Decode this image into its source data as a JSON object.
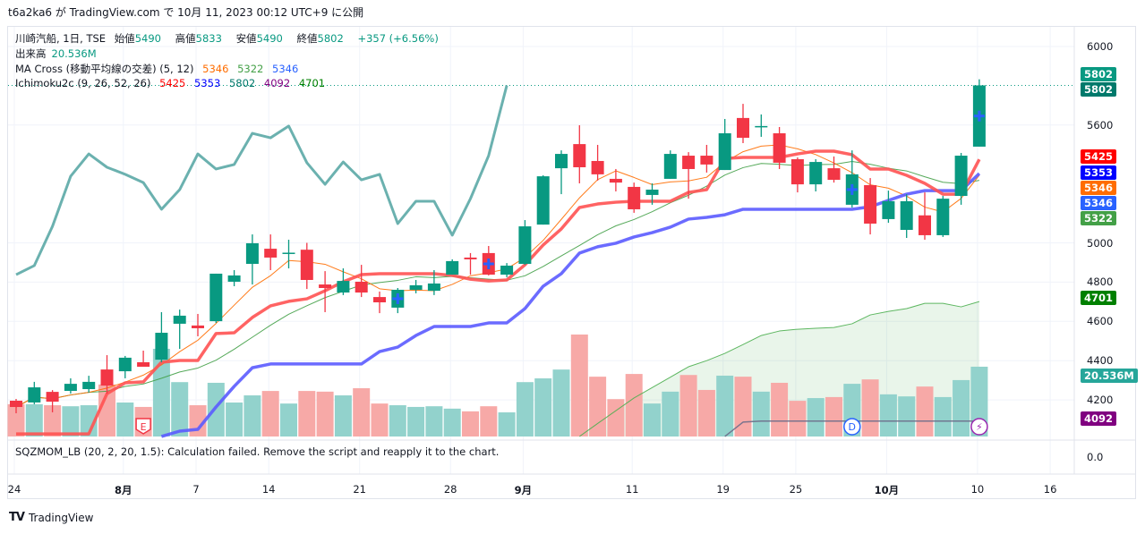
{
  "caption": "t6a2ka6 が TradingView.com で 10月 11, 2023 00:12 UTC+9 に公開",
  "legend": {
    "symbol": "川崎汽船, 1日, TSE",
    "open_label": "始値",
    "open": "5490",
    "high_label": "高値",
    "high": "5833",
    "low_label": "安値",
    "low": "5490",
    "close_label": "終値",
    "close": "5802",
    "change": "+357 (+6.56%)",
    "volume_label": "出来高",
    "volume": "20.536M",
    "ma_label": "MA Cross (移動平均線の交差) (5, 12)",
    "ma_values": [
      "5346",
      "5322",
      "5346"
    ],
    "ichimoku_label": "Ichimoku2c (9, 26, 52, 26)",
    "ichimoku_values": [
      "5425",
      "5353",
      "5802",
      "4092",
      "4701"
    ]
  },
  "price_ticks": [
    "6000",
    "5600",
    "5000",
    "4800",
    "4600",
    "4400",
    "4200"
  ],
  "lower_tick": "0.0",
  "price_labels": [
    {
      "text": "5802",
      "color": "#089981",
      "price": 5860
    },
    {
      "text": "5802",
      "color": "#00796b",
      "price": 5802
    },
    {
      "text": "5425",
      "color": "#ff0000",
      "price": 5440
    },
    {
      "text": "5353",
      "color": "#0000ff",
      "price": 5358
    },
    {
      "text": "5346",
      "color": "#ff6d00",
      "price": 5280
    },
    {
      "text": "5346",
      "color": "#2962ff",
      "price": 5203
    },
    {
      "text": "5322",
      "color": "#43a047",
      "price": 5126
    },
    {
      "text": "4701",
      "color": "#008000",
      "price": 4718
    },
    {
      "text": "20.536M",
      "color": "#26a69a",
      "price": 4380
    },
    {
      "text": "4092",
      "color": "#800080",
      "price": 4103
    }
  ],
  "date_labels": [
    {
      "text": "24",
      "index": 0
    },
    {
      "text": "8月",
      "index": 6
    },
    {
      "text": "7",
      "index": 10
    },
    {
      "text": "14",
      "index": 14
    },
    {
      "text": "21",
      "index": 19
    },
    {
      "text": "28",
      "index": 24
    },
    {
      "text": "9月",
      "index": 28
    },
    {
      "text": "11",
      "index": 34
    },
    {
      "text": "19",
      "index": 39
    },
    {
      "text": "25",
      "index": 43
    },
    {
      "text": "10月",
      "index": 48
    },
    {
      "text": "10",
      "index": 53
    },
    {
      "text": "16",
      "index": 57
    }
  ],
  "error_message": "SQZMOM_LB (20, 2, 20, 1.5): Calculation failed. Remove the script and reapply it to the chart.",
  "footer_logo": "TradingView",
  "markers": [
    {
      "type": "earnings",
      "text": "E",
      "index": 7
    },
    {
      "type": "dividend",
      "text": "D",
      "index": 46
    },
    {
      "type": "split",
      "text": "⚡",
      "index": 53
    }
  ],
  "colors": {
    "up": "#089981",
    "down": "#f23645",
    "vol_up": "#92d2cc",
    "vol_down": "#f7a9a7",
    "ma_fast": "#ff6d00",
    "ma_slow": "#43a047",
    "conversion": "#ff5252",
    "base": "#5b5bff",
    "lagging": "#5ba9a6",
    "span_a": "#6d6d8a",
    "span_b": "#4caf50"
  },
  "chart_data": {
    "type": "candlestick",
    "ylim": [
      4086,
      6000
    ],
    "candles": [
      [
        4196,
        4205,
        4132,
        4164
      ],
      [
        4187,
        4292,
        4178,
        4264
      ],
      [
        4241,
        4250,
        4137,
        4191
      ],
      [
        4246,
        4310,
        4232,
        4282
      ],
      [
        4255,
        4323,
        4237,
        4292
      ],
      [
        4355,
        4428,
        4232,
        4273
      ],
      [
        4346,
        4424,
        4310,
        4415
      ],
      [
        4392,
        4451,
        4369,
        4369
      ],
      [
        4405,
        4647,
        4392,
        4542
      ],
      [
        4588,
        4660,
        4460,
        4629
      ],
      [
        4579,
        4638,
        4524,
        4565
      ],
      [
        4601,
        4843,
        4592,
        4843
      ],
      [
        4802,
        4861,
        4779,
        4834
      ],
      [
        4893,
        5043,
        4788,
        4998
      ],
      [
        4970,
        5043,
        4861,
        4925
      ],
      [
        4950,
        5016,
        4870,
        4950
      ],
      [
        4965,
        5000,
        4765,
        4811
      ],
      [
        4788,
        4856,
        4647,
        4770
      ],
      [
        4747,
        4870,
        4734,
        4806
      ],
      [
        4802,
        4888,
        4724,
        4747
      ],
      [
        4724,
        4752,
        4642,
        4697
      ],
      [
        4670,
        4770,
        4642,
        4761
      ],
      [
        4761,
        4811,
        4743,
        4784
      ],
      [
        4756,
        4861,
        4734,
        4793
      ],
      [
        4838,
        4916,
        4838,
        4907
      ],
      [
        4925,
        4948,
        4838,
        4916
      ],
      [
        4948,
        4984,
        4834,
        4838
      ],
      [
        4838,
        4897,
        4825,
        4884
      ],
      [
        4893,
        5116,
        4888,
        5084
      ],
      [
        5093,
        5344,
        5093,
        5339
      ],
      [
        5380,
        5471,
        5248,
        5453
      ],
      [
        5503,
        5599,
        5303,
        5385
      ],
      [
        5417,
        5499,
        5317,
        5349
      ],
      [
        5326,
        5376,
        5262,
        5307
      ],
      [
        5285,
        5307,
        5153,
        5171
      ],
      [
        5244,
        5303,
        5194,
        5271
      ],
      [
        5326,
        5471,
        5326,
        5453
      ],
      [
        5444,
        5462,
        5225,
        5376
      ],
      [
        5444,
        5499,
        5358,
        5399
      ],
      [
        5371,
        5631,
        5371,
        5558
      ],
      [
        5636,
        5708,
        5508,
        5535
      ],
      [
        5595,
        5654,
        5540,
        5595
      ],
      [
        5558,
        5590,
        5376,
        5408
      ],
      [
        5426,
        5435,
        5257,
        5298
      ],
      [
        5298,
        5426,
        5262,
        5412
      ],
      [
        5380,
        5440,
        5307,
        5321
      ],
      [
        5194,
        5471,
        5180,
        5349
      ],
      [
        5294,
        5330,
        5043,
        5098
      ],
      [
        5121,
        5266,
        5102,
        5212
      ],
      [
        5066,
        5248,
        5025,
        5212
      ],
      [
        5140,
        5257,
        5016,
        5039
      ],
      [
        5039,
        5239,
        5030,
        5225
      ],
      [
        5239,
        5458,
        5194,
        5444
      ],
      [
        5490,
        5833,
        5490,
        5802
      ]
    ],
    "volume_millions": [
      9.5,
      9.5,
      9.2,
      8.9,
      9.2,
      15.3,
      10.0,
      8.7,
      25.8,
      16.0,
      9.2,
      15.8,
      10.0,
      12.1,
      13.4,
      9.7,
      13.4,
      13.2,
      12.1,
      14.2,
      9.7,
      9.2,
      8.7,
      8.9,
      8.2,
      7.4,
      8.9,
      7.1,
      16.0,
      17.1,
      19.7,
      30.0,
      17.6,
      11.0,
      18.4,
      9.7,
      13.2,
      18.1,
      13.7,
      17.9,
      17.6,
      13.2,
      15.8,
      10.5,
      11.3,
      11.6,
      15.5,
      16.8,
      12.4,
      11.8,
      14.7,
      11.6,
      16.6,
      20.536
    ],
    "ichimoku_conversion": [
      4027,
      4027,
      4027,
      4027,
      4027,
      4232,
      4287,
      4292,
      4392,
      4401,
      4401,
      4538,
      4542,
      4620,
      4679,
      4702,
      4715,
      4756,
      4802,
      4838,
      4843,
      4843,
      4843,
      4843,
      4834,
      4815,
      4806,
      4811,
      4888,
      4989,
      5071,
      5180,
      5198,
      5207,
      5212,
      5212,
      5212,
      5257,
      5271,
      5430,
      5435,
      5435,
      5435,
      5453,
      5467,
      5467,
      5449,
      5376,
      5376,
      5344,
      5303,
      5248,
      5248,
      5425
    ],
    "ichimoku_base_start": 8,
    "ichimoku_base": [
      4014,
      4041,
      4050,
      4164,
      4269,
      4364,
      4383,
      4383,
      4383,
      4383,
      4383,
      4383,
      4446,
      4469,
      4528,
      4574,
      4574,
      4574,
      4592,
      4592,
      4665,
      4779,
      4843,
      4948,
      4980,
      4998,
      5030,
      5052,
      5080,
      5121,
      5130,
      5143,
      5171,
      5171,
      5171,
      5171,
      5171,
      5171,
      5171,
      5184,
      5216,
      5248,
      5266,
      5266,
      5266,
      5353
    ],
    "span_b_start": 31,
    "span_b": [
      4014,
      4080,
      4145,
      4210,
      4263,
      4316,
      4369,
      4400,
      4437,
      4482,
      4528,
      4551,
      4560,
      4565,
      4569,
      4588,
      4633,
      4651,
      4665,
      4692,
      4692,
      4674,
      4701
    ],
    "span_a_start": 39,
    "span_a": [
      4014,
      4087,
      4092,
      4092,
      4092,
      4092,
      4092,
      4092,
      4092,
      4092,
      4092,
      4092,
      4092,
      4092,
      4092
    ],
    "lagging_shift": 26,
    "ma_periods": [
      5,
      12
    ],
    "signal_crosses": [
      21,
      26,
      46,
      53
    ]
  }
}
